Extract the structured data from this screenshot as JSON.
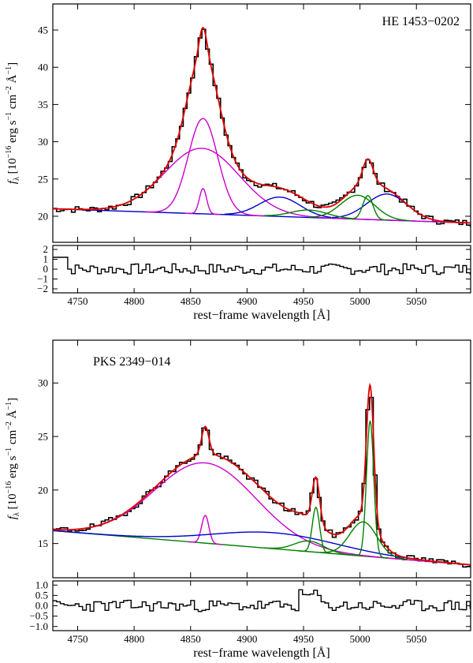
{
  "chart_data": [
    {
      "type": "line",
      "title": "HE 1453−0202",
      "xlabel": "",
      "ylabel_html": "fλ [10⁻¹⁶ erg s⁻¹ cm⁻² Å⁻¹]",
      "ylabel": {
        "sym": "f",
        "sub": "λ",
        "pre": "[10",
        "e1": "−16",
        "mid1": "erg s",
        "e2": "−1",
        "mid2": "cm",
        "e3": "−2",
        "mid3": "Å",
        "e4": "−1",
        "post": "]"
      },
      "xlim": [
        4728,
        5098
      ],
      "ylim": [
        16.5,
        48.5
      ],
      "xticks": [
        4750,
        4800,
        4850,
        4900,
        4950,
        5000,
        5050
      ],
      "yticks": [
        20,
        25,
        30,
        35,
        40,
        45
      ],
      "series": [
        {
          "name": "continuum",
          "color": "#0000cc",
          "kind": "line",
          "x": [
            4728,
            5098
          ],
          "y": [
            21.0,
            19.1
          ]
        },
        {
          "name": "Hβ broad component",
          "color": "#cc00cc",
          "kind": "gauss",
          "base": "continuum",
          "center": 4860,
          "amp": 8.8,
          "sigma": 33,
          "range": [
            4728,
            5098
          ]
        },
        {
          "name": "Hβ intermediate component",
          "color": "#cc00cc",
          "kind": "gauss",
          "base": "continuum",
          "center": 4861,
          "amp": 12.8,
          "sigma": 13,
          "range": [
            4810,
            4915
          ]
        },
        {
          "name": "Hβ narrow component",
          "color": "#cc00cc",
          "kind": "gauss",
          "base": "continuum",
          "center": 4861,
          "amp": 3.4,
          "sigma": 3.2,
          "range": [
            4845,
            4877
          ]
        },
        {
          "name": "Fe II 4924",
          "color": "#0000cc",
          "kind": "gauss",
          "base": "continuum",
          "center": 4929,
          "amp": 2.6,
          "sigma": 18,
          "range": [
            4880,
            4975
          ]
        },
        {
          "name": "Fe II 5018",
          "color": "#0000cc",
          "kind": "gauss",
          "base": "continuum",
          "center": 5024,
          "amp": 3.5,
          "sigma": 18,
          "range": [
            4975,
            5070
          ]
        },
        {
          "name": "[O III] 4959 broad",
          "color": "#008000",
          "kind": "gauss",
          "base": "continuum",
          "center": 4955,
          "amp": 1.0,
          "sigma": 16,
          "range": [
            4915,
            4995
          ]
        },
        {
          "name": "[O III] 5007 broad",
          "color": "#008000",
          "kind": "gauss",
          "base": "continuum",
          "center": 4998,
          "amp": 3.2,
          "sigma": 15,
          "range": [
            4955,
            5045
          ]
        },
        {
          "name": "[O III] 5007 narrow",
          "color": "#008000",
          "kind": "gauss",
          "base": "continuum",
          "center": 5007,
          "amp": 3.2,
          "sigma": 4.5,
          "range": [
            4990,
            5025
          ]
        },
        {
          "name": "total model",
          "color": "#e00000",
          "kind": "sum",
          "range": [
            4728,
            5098
          ]
        },
        {
          "name": "observed spectrum",
          "color": "#000000",
          "kind": "step",
          "bin": 3.3,
          "noise_amp": 0.45,
          "seed": 7,
          "range": [
            4728,
            5098
          ]
        }
      ],
      "residual": {
        "ylim": [
          -2.4,
          2.4
        ],
        "yticks": [
          -2,
          -1,
          0,
          1,
          2
        ],
        "yticklabels": [
          "−2",
          "−1",
          "0",
          "1",
          "2"
        ],
        "amp": 0.55,
        "seed": 7
      }
    },
    {
      "type": "line",
      "title": "PKS 2349−014",
      "xlabel": "rest−frame wavelength [Å]",
      "ylabel_html": "fλ [10⁻¹⁶ erg s⁻¹ cm⁻² Å⁻¹]",
      "ylabel": {
        "sym": "f",
        "sub": "λ",
        "pre": "[10",
        "e1": "−16",
        "mid1": "erg s",
        "e2": "−1",
        "mid2": "cm",
        "e3": "−2",
        "mid3": "Å",
        "e4": "−1",
        "post": "]"
      },
      "xlim": [
        4728,
        5098
      ],
      "ylim": [
        11.8,
        34.0
      ],
      "xticks": [
        4750,
        4800,
        4850,
        4900,
        4950,
        5000,
        5050
      ],
      "yticks": [
        15,
        20,
        25,
        30
      ],
      "series": [
        {
          "name": "continuum",
          "color": "#008000",
          "kind": "line",
          "x": [
            4728,
            5098
          ],
          "y": [
            16.2,
            13.0
          ]
        },
        {
          "name": "Hβ broad component",
          "color": "#cc00cc",
          "kind": "gauss",
          "base": "continuum",
          "center": 4863,
          "amp": 7.5,
          "sigma": 45,
          "range": [
            4728,
            5098
          ]
        },
        {
          "name": "Hβ narrow component",
          "color": "#cc00cc",
          "kind": "gauss",
          "base": "continuum",
          "center": 4863,
          "amp": 2.6,
          "sigma": 3.2,
          "range": [
            4848,
            4878
          ]
        },
        {
          "name": "Fe II",
          "color": "#0000cc",
          "kind": "gauss",
          "base": "continuum",
          "center": 4925,
          "amp": 1.5,
          "sigma": 55,
          "range": [
            4728,
            5098
          ]
        },
        {
          "name": "[O III] 4959 broad",
          "color": "#008000",
          "kind": "gauss",
          "base": "continuum",
          "center": 4955,
          "amp": 1.0,
          "sigma": 13,
          "range": [
            4915,
            4995
          ]
        },
        {
          "name": "[O III] 4959 narrow",
          "color": "#008000",
          "kind": "gauss",
          "base": "continuum",
          "center": 4961,
          "amp": 4.2,
          "sigma": 3.2,
          "range": [
            4945,
            4977
          ]
        },
        {
          "name": "[O III] 5007 broad",
          "color": "#008000",
          "kind": "gauss",
          "base": "continuum",
          "center": 5003,
          "amp": 3.2,
          "sigma": 12,
          "range": [
            4965,
            5042
          ]
        },
        {
          "name": "[O III] 5007 narrow",
          "color": "#008000",
          "kind": "gauss",
          "base": "continuum",
          "center": 5009,
          "amp": 12.7,
          "sigma": 3.2,
          "range": [
            4993,
            5025
          ]
        },
        {
          "name": "total model",
          "color": "#e00000",
          "kind": "sum",
          "range": [
            4728,
            5098
          ]
        },
        {
          "name": "observed spectrum",
          "color": "#000000",
          "kind": "step",
          "bin": 3.3,
          "noise_amp": 0.3,
          "seed": 19,
          "range": [
            4728,
            5098
          ]
        }
      ],
      "residual": {
        "ylim": [
          -1.2,
          1.2
        ],
        "yticks": [
          -1.0,
          -0.5,
          0.0,
          0.5,
          1.0
        ],
        "yticklabels": [
          "−1.0",
          "−0.5",
          "0.0",
          "0.5",
          "1.0"
        ],
        "amp": 0.28,
        "seed": 23
      }
    }
  ],
  "shared": {
    "xlabel": "rest−frame wavelength [Å]",
    "xticklabels": [
      "4750",
      "4800",
      "4850",
      "4900",
      "4950",
      "5000",
      "5050"
    ]
  }
}
